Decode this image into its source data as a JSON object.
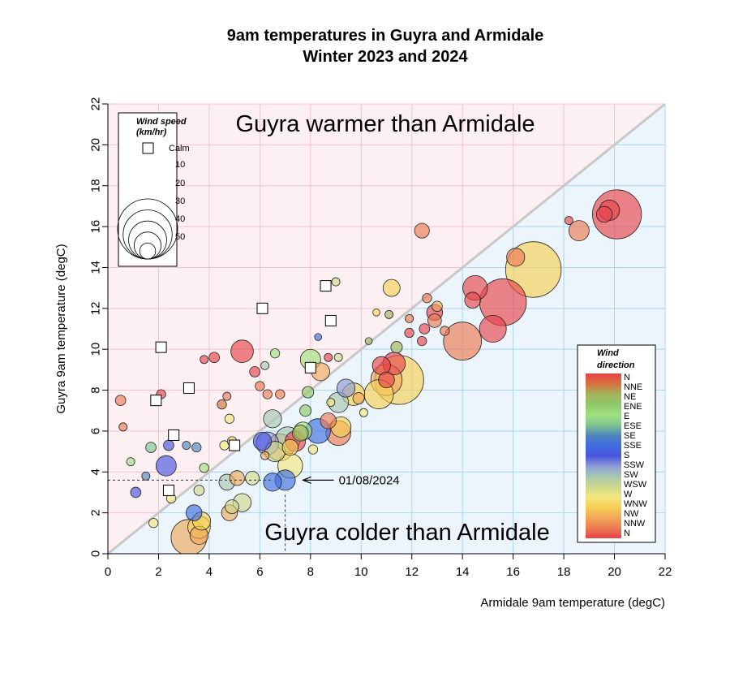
{
  "chart_data": {
    "type": "scatter",
    "title": "9am temperatures in Guyra and Armidale",
    "subtitle": "Winter 2023 and 2024",
    "xlabel": "Armidale 9am temperature (degC)",
    "ylabel": "Guyra 9am temperature (degC)",
    "xlim": [
      0,
      22
    ],
    "ylim": [
      0,
      22
    ],
    "x_ticks": [
      "0",
      "2",
      "4",
      "6",
      "8",
      "10",
      "12",
      "14",
      "16",
      "18",
      "20",
      "22"
    ],
    "y_ticks": [
      "0",
      "2",
      "4",
      "6",
      "8",
      "10",
      "12",
      "14",
      "16",
      "18",
      "20",
      "22"
    ],
    "grid": true,
    "reference_line": "y = x",
    "region_labels": {
      "above": "Guyra warmer than Armidale",
      "below": "Guyra colder than Armidale"
    },
    "annotation": {
      "text": "01/08/2024",
      "x": 7.0,
      "y": 3.6
    },
    "size_legend": {
      "title_line1": "Wind speed",
      "title_line2": "(km/hr)",
      "calm_label": "Calm",
      "entries": [
        {
          "label": "10",
          "speed": 10
        },
        {
          "label": "20",
          "speed": 20
        },
        {
          "label": "30",
          "speed": 30
        },
        {
          "label": "40",
          "speed": 40
        },
        {
          "label": "50",
          "speed": 50
        }
      ]
    },
    "color_legend": {
      "title_line1": "Wind",
      "title_line2": "direction",
      "labels": [
        "N",
        "NNE",
        "NE",
        "ENE",
        "E",
        "ESE",
        "SE",
        "SSE",
        "S",
        "SSW",
        "SW",
        "WSW",
        "W",
        "WNW",
        "NW",
        "NNW",
        "N"
      ]
    },
    "colors": {
      "warm_region": "#fdf0f3",
      "cold_region": "#ebf5fb",
      "warm_label": "#eab4c0",
      "cold_label": "#9fcde8",
      "warm_grid": "#f4c2cf",
      "cold_grid": "#a9d6ee",
      "diagonal": "#c8c8c8",
      "direction_palette": [
        "#e8434a",
        "#d9703d",
        "#a3b45a",
        "#8fc86a",
        "#9fe07c",
        "#7fc490",
        "#4f86b8",
        "#3f6ee2",
        "#4a55dd",
        "#8d9ad8",
        "#a8c8b0",
        "#cfd88d",
        "#f2e77e",
        "#f6cf54",
        "#f0a85a",
        "#ec7a50",
        "#e8434a"
      ]
    },
    "points": [
      {
        "x": 20.1,
        "y": 16.6,
        "speed": 40,
        "dir": "N"
      },
      {
        "x": 19.8,
        "y": 16.8,
        "speed": 14,
        "dir": "N"
      },
      {
        "x": 19.6,
        "y": 16.6,
        "speed": 10,
        "dir": "N"
      },
      {
        "x": 18.6,
        "y": 15.8,
        "speed": 14,
        "dir": "NNW"
      },
      {
        "x": 18.2,
        "y": 16.3,
        "speed": 3,
        "dir": "N"
      },
      {
        "x": 16.8,
        "y": 13.9,
        "speed": 46,
        "dir": "WNW"
      },
      {
        "x": 16.1,
        "y": 14.5,
        "speed": 12,
        "dir": "NNW"
      },
      {
        "x": 15.6,
        "y": 12.3,
        "speed": 38,
        "dir": "N"
      },
      {
        "x": 15.2,
        "y": 11.0,
        "speed": 20,
        "dir": "N"
      },
      {
        "x": 14.5,
        "y": 13.0,
        "speed": 18,
        "dir": "N"
      },
      {
        "x": 14.4,
        "y": 12.4,
        "speed": 10,
        "dir": "N"
      },
      {
        "x": 14.0,
        "y": 10.4,
        "speed": 30,
        "dir": "NNW"
      },
      {
        "x": 12.4,
        "y": 15.8,
        "speed": 9,
        "dir": "NNW"
      },
      {
        "x": 11.2,
        "y": 13.0,
        "speed": 11,
        "dir": "WNW"
      },
      {
        "x": 12.9,
        "y": 11.8,
        "speed": 10,
        "dir": "N"
      },
      {
        "x": 12.9,
        "y": 11.4,
        "speed": 8,
        "dir": "NNW"
      },
      {
        "x": 13.0,
        "y": 12.1,
        "speed": 5,
        "dir": "NW"
      },
      {
        "x": 12.6,
        "y": 12.5,
        "speed": 4,
        "dir": "NNW"
      },
      {
        "x": 13.3,
        "y": 10.9,
        "speed": 4,
        "dir": "NNW"
      },
      {
        "x": 12.4,
        "y": 10.4,
        "speed": 4,
        "dir": "N"
      },
      {
        "x": 11.5,
        "y": 8.5,
        "speed": 40,
        "dir": "WNW"
      },
      {
        "x": 11.0,
        "y": 8.5,
        "speed": 24,
        "dir": "NW"
      },
      {
        "x": 10.7,
        "y": 7.8,
        "speed": 22,
        "dir": "WNW"
      },
      {
        "x": 11.3,
        "y": 9.3,
        "speed": 16,
        "dir": "N"
      },
      {
        "x": 10.8,
        "y": 9.2,
        "speed": 12,
        "dir": "N"
      },
      {
        "x": 11.0,
        "y": 8.5,
        "speed": 10,
        "dir": "N"
      },
      {
        "x": 11.4,
        "y": 10.1,
        "speed": 6,
        "dir": "NE"
      },
      {
        "x": 11.9,
        "y": 10.8,
        "speed": 4,
        "dir": "N"
      },
      {
        "x": 11.9,
        "y": 11.5,
        "speed": 3,
        "dir": "NNW"
      },
      {
        "x": 11.1,
        "y": 11.7,
        "speed": 3,
        "dir": "NE"
      },
      {
        "x": 10.6,
        "y": 11.8,
        "speed": 2,
        "dir": "WNW"
      },
      {
        "x": 10.3,
        "y": 10.4,
        "speed": 2,
        "dir": "NE"
      },
      {
        "x": 9.7,
        "y": 7.8,
        "speed": 16,
        "dir": "WNW"
      },
      {
        "x": 9.4,
        "y": 8.1,
        "speed": 12,
        "dir": "SSW"
      },
      {
        "x": 9.1,
        "y": 7.4,
        "speed": 14,
        "dir": "SW"
      },
      {
        "x": 9.1,
        "y": 5.9,
        "speed": 18,
        "dir": "NNW"
      },
      {
        "x": 9.2,
        "y": 6.2,
        "speed": 14,
        "dir": "WNW"
      },
      {
        "x": 8.3,
        "y": 6.0,
        "speed": 18,
        "dir": "SSE"
      },
      {
        "x": 8.7,
        "y": 6.5,
        "speed": 10,
        "dir": "NNW"
      },
      {
        "x": 8.0,
        "y": 9.5,
        "speed": 14,
        "dir": "E"
      },
      {
        "x": 8.4,
        "y": 8.9,
        "speed": 12,
        "dir": "NW"
      },
      {
        "x": 8.7,
        "y": 9.6,
        "speed": 3,
        "dir": "N"
      },
      {
        "x": 9.0,
        "y": 13.3,
        "speed": 3,
        "dir": "WSW"
      },
      {
        "x": 8.3,
        "y": 10.6,
        "speed": 2,
        "dir": "SSE"
      },
      {
        "x": 9.1,
        "y": 9.6,
        "speed": 3,
        "dir": "WSW"
      },
      {
        "x": 7.9,
        "y": 7.9,
        "speed": 6,
        "dir": "ENE"
      },
      {
        "x": 7.8,
        "y": 7.0,
        "speed": 6,
        "dir": "ENE"
      },
      {
        "x": 7.7,
        "y": 6.0,
        "speed": 12,
        "dir": "E"
      },
      {
        "x": 7.4,
        "y": 5.5,
        "speed": 14,
        "dir": "N"
      },
      {
        "x": 7.6,
        "y": 5.9,
        "speed": 10,
        "dir": "NE"
      },
      {
        "x": 7.2,
        "y": 4.3,
        "speed": 18,
        "dir": "W"
      },
      {
        "x": 7.0,
        "y": 3.6,
        "speed": 14,
        "dir": "SSE"
      },
      {
        "x": 6.5,
        "y": 3.5,
        "speed": 12,
        "dir": "SSE"
      },
      {
        "x": 6.8,
        "y": 5.2,
        "speed": 20,
        "dir": "NW"
      },
      {
        "x": 6.6,
        "y": 5.0,
        "speed": 14,
        "dir": "WSW"
      },
      {
        "x": 6.3,
        "y": 5.4,
        "speed": 16,
        "dir": "SSW"
      },
      {
        "x": 6.1,
        "y": 5.5,
        "speed": 12,
        "dir": "S"
      },
      {
        "x": 7.1,
        "y": 5.6,
        "speed": 18,
        "dir": "SW"
      },
      {
        "x": 6.5,
        "y": 6.6,
        "speed": 12,
        "dir": "SW"
      },
      {
        "x": 7.2,
        "y": 5.2,
        "speed": 10,
        "dir": "WNW"
      },
      {
        "x": 6.8,
        "y": 7.8,
        "speed": 4,
        "dir": "NNW"
      },
      {
        "x": 6.3,
        "y": 7.8,
        "speed": 4,
        "dir": "NNW"
      },
      {
        "x": 6.0,
        "y": 8.2,
        "speed": 4,
        "dir": "NNW"
      },
      {
        "x": 5.8,
        "y": 8.9,
        "speed": 5,
        "dir": "N"
      },
      {
        "x": 6.2,
        "y": 9.2,
        "speed": 3,
        "dir": "SW"
      },
      {
        "x": 6.6,
        "y": 9.8,
        "speed": 4,
        "dir": "E"
      },
      {
        "x": 5.3,
        "y": 9.9,
        "speed": 16,
        "dir": "N"
      },
      {
        "x": 5.7,
        "y": 3.7,
        "speed": 8,
        "dir": "WSW"
      },
      {
        "x": 5.1,
        "y": 3.7,
        "speed": 9,
        "dir": "NW"
      },
      {
        "x": 5.3,
        "y": 2.5,
        "speed": 12,
        "dir": "WSW"
      },
      {
        "x": 4.8,
        "y": 2.0,
        "speed": 10,
        "dir": "NW"
      },
      {
        "x": 4.9,
        "y": 2.3,
        "speed": 8,
        "dir": "WSW"
      },
      {
        "x": 4.7,
        "y": 3.5,
        "speed": 10,
        "dir": "SW"
      },
      {
        "x": 4.6,
        "y": 5.3,
        "speed": 4,
        "dir": "W"
      },
      {
        "x": 4.8,
        "y": 6.6,
        "speed": 4,
        "dir": "W"
      },
      {
        "x": 4.5,
        "y": 7.3,
        "speed": 4,
        "dir": "NNE"
      },
      {
        "x": 4.7,
        "y": 7.7,
        "speed": 3,
        "dir": "NNW"
      },
      {
        "x": 4.2,
        "y": 9.6,
        "speed": 5,
        "dir": "N"
      },
      {
        "x": 3.8,
        "y": 9.5,
        "speed": 3,
        "dir": "N"
      },
      {
        "x": 3.6,
        "y": 1.3,
        "speed": 16,
        "dir": "WNW"
      },
      {
        "x": 3.6,
        "y": 0.9,
        "speed": 12,
        "dir": "NW"
      },
      {
        "x": 3.2,
        "y": 0.8,
        "speed": 28,
        "dir": "NW"
      },
      {
        "x": 3.7,
        "y": 1.6,
        "speed": 12,
        "dir": "WNW"
      },
      {
        "x": 3.4,
        "y": 2.0,
        "speed": 10,
        "dir": "SSE"
      },
      {
        "x": 3.6,
        "y": 3.1,
        "speed": 5,
        "dir": "WSW"
      },
      {
        "x": 3.8,
        "y": 4.2,
        "speed": 4,
        "dir": "E"
      },
      {
        "x": 3.5,
        "y": 5.2,
        "speed": 4,
        "dir": "SE"
      },
      {
        "x": 3.1,
        "y": 5.3,
        "speed": 3,
        "dir": "SE"
      },
      {
        "x": 2.3,
        "y": 4.3,
        "speed": 14,
        "dir": "S"
      },
      {
        "x": 2.4,
        "y": 5.3,
        "speed": 5,
        "dir": "S"
      },
      {
        "x": 1.7,
        "y": 5.2,
        "speed": 5,
        "dir": "ESE"
      },
      {
        "x": 1.1,
        "y": 3.0,
        "speed": 5,
        "dir": "S"
      },
      {
        "x": 1.5,
        "y": 3.8,
        "speed": 3,
        "dir": "SE"
      },
      {
        "x": 1.8,
        "y": 1.5,
        "speed": 4,
        "dir": "W"
      },
      {
        "x": 0.5,
        "y": 7.5,
        "speed": 5,
        "dir": "NNW"
      },
      {
        "x": 0.6,
        "y": 6.2,
        "speed": 3,
        "dir": "NNW"
      },
      {
        "x": 0.9,
        "y": 4.5,
        "speed": 3,
        "dir": "E"
      },
      {
        "x": 2.1,
        "y": 7.8,
        "speed": 4,
        "dir": "N"
      },
      {
        "x": 2.5,
        "y": 2.7,
        "speed": 4,
        "dir": "W"
      },
      {
        "x": 4.9,
        "y": 5.5,
        "speed": 4,
        "dir": "WNW"
      },
      {
        "x": 6.2,
        "y": 4.8,
        "speed": 3,
        "dir": "NW"
      },
      {
        "x": 8.1,
        "y": 5.1,
        "speed": 4,
        "dir": "W"
      },
      {
        "x": 8.8,
        "y": 7.4,
        "speed": 3,
        "dir": "W"
      },
      {
        "x": 10.1,
        "y": 6.9,
        "speed": 3,
        "dir": "W"
      },
      {
        "x": 9.9,
        "y": 7.6,
        "speed": 6,
        "dir": "NW"
      },
      {
        "x": 12.5,
        "y": 11.0,
        "speed": 5,
        "dir": "N"
      }
    ],
    "calm_points": [
      {
        "x": 2.1,
        "y": 10.1
      },
      {
        "x": 1.9,
        "y": 7.5
      },
      {
        "x": 3.2,
        "y": 8.1
      },
      {
        "x": 2.6,
        "y": 5.8
      },
      {
        "x": 5.0,
        "y": 5.3
      },
      {
        "x": 2.4,
        "y": 3.1
      },
      {
        "x": 6.1,
        "y": 12.0
      },
      {
        "x": 8.0,
        "y": 9.1
      },
      {
        "x": 8.6,
        "y": 13.1
      },
      {
        "x": 8.8,
        "y": 11.4
      }
    ]
  }
}
